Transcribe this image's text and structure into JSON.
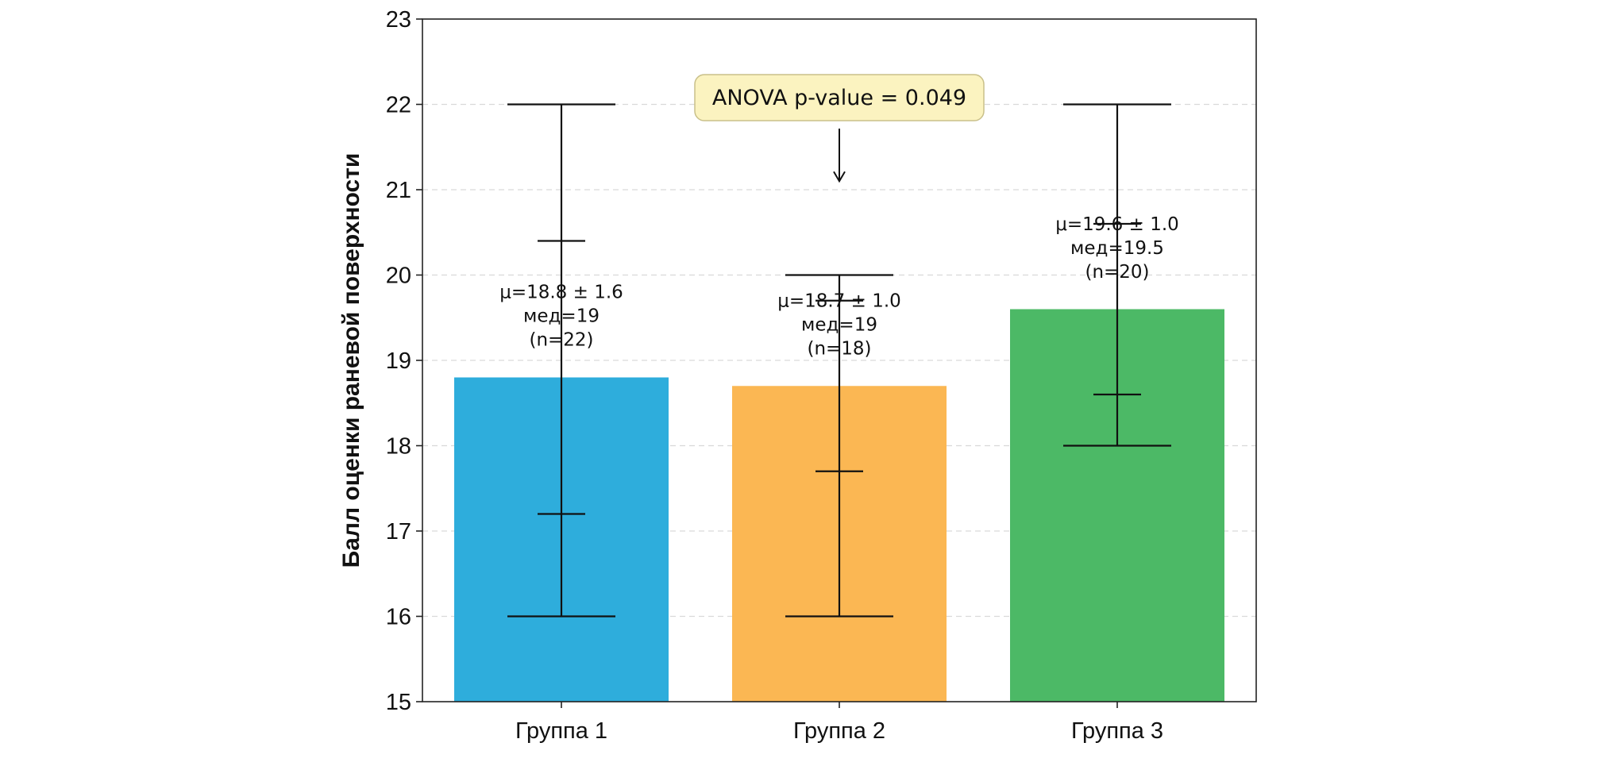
{
  "chart_data": {
    "type": "bar",
    "title": "",
    "xlabel": "",
    "ylabel": "Балл оценки раневой поверхности",
    "ylim": [
      15,
      23
    ],
    "yticks": [
      15,
      16,
      17,
      18,
      19,
      20,
      21,
      22,
      23
    ],
    "grid": "horizontal dashed",
    "categories": [
      "Группа 1",
      "Группа 2",
      "Группа 3"
    ],
    "values": [
      18.8,
      18.7,
      19.6
    ],
    "colors": [
      "#2eaddc",
      "#fbb753",
      "#4cb966"
    ],
    "whiskers": [
      {
        "min": 16,
        "max": 22
      },
      {
        "min": 16,
        "max": 20
      },
      {
        "min": 18,
        "max": 22
      }
    ],
    "sd_error": [
      {
        "low": 17.2,
        "high": 20.4
      },
      {
        "low": 17.7,
        "high": 19.7
      },
      {
        "low": 18.6,
        "high": 20.6
      }
    ],
    "bar_annotations": [
      {
        "mean_line": "μ=18.8 ± 1.6",
        "median_line": "мед=19",
        "n_line": "(n=22)"
      },
      {
        "mean_line": "μ=18.7 ± 1.0",
        "median_line": "мед=19",
        "n_line": "(n=18)"
      },
      {
        "mean_line": "μ=19.6 ± 1.0",
        "median_line": "мед=19.5",
        "n_line": "(n=20)"
      }
    ],
    "annotation_box": {
      "text": "ANOVA p-value = 0.049"
    },
    "colors_meta": {
      "axis": "#222222",
      "grid": "#d9d9d9",
      "errorbar": "#111111",
      "box_fill": "#fbf3c0",
      "box_border": "#c9c08a"
    }
  }
}
